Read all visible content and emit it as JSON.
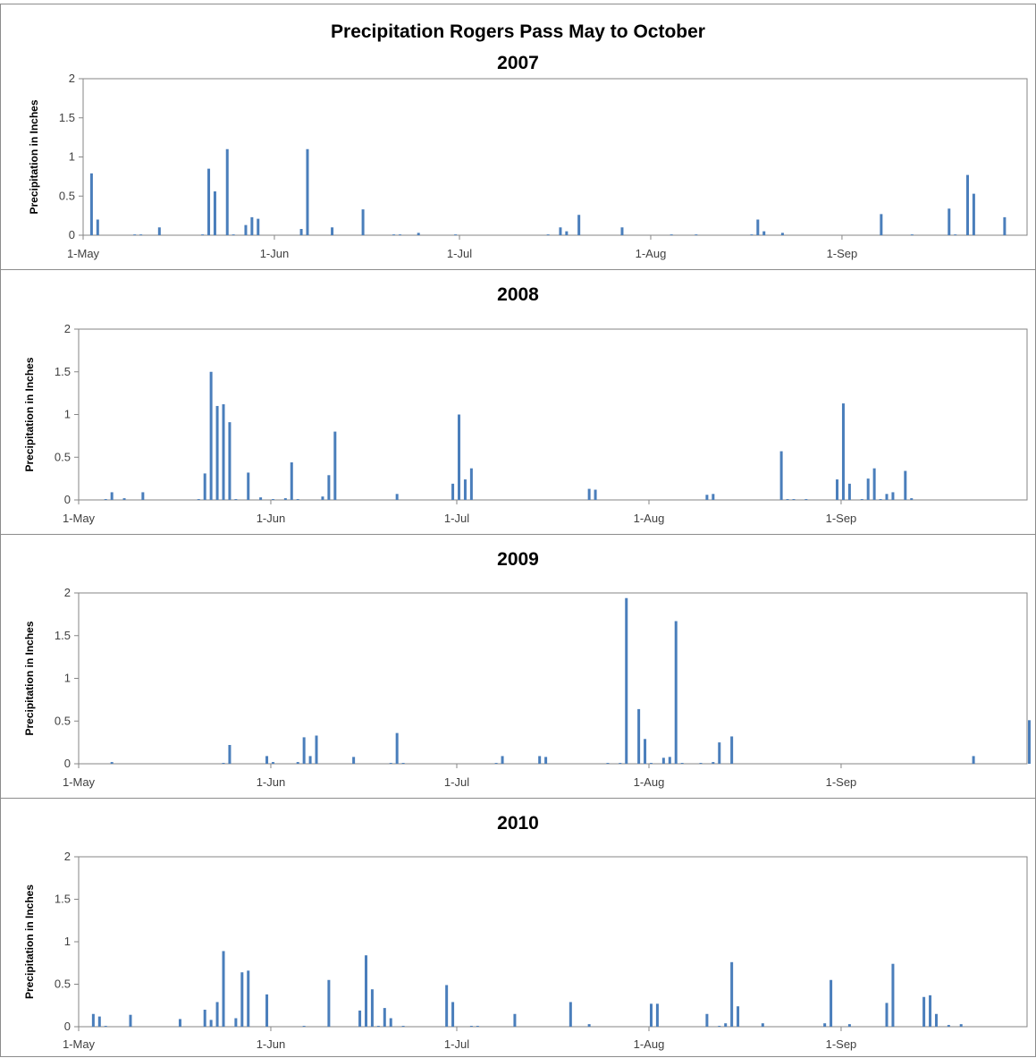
{
  "page_title": "Precipitation Rogers Pass May to October",
  "colors": {
    "bar": "#4a7ebb",
    "axis": "#868686",
    "border": "#8c8c8c"
  },
  "chart_data": [
    {
      "type": "bar",
      "title": "2007",
      "ylabel": "Precipitation in Inches",
      "xlabel": "",
      "ylim": [
        0,
        2
      ],
      "yticks": [
        "0",
        "0.5",
        "1",
        "1.5",
        "2"
      ],
      "xticks": [
        {
          "day": 1,
          "label": "1-May"
        },
        {
          "day": 32,
          "label": "1-Jun"
        },
        {
          "day": 62,
          "label": "1-Jul"
        },
        {
          "day": 93,
          "label": "1-Aug"
        },
        {
          "day": 124,
          "label": "1-Sep"
        }
      ],
      "x_unit": "day since 30-Apr",
      "x": [
        2,
        3,
        9,
        10,
        13,
        20,
        21,
        22,
        24,
        25,
        27,
        28,
        29,
        36,
        37,
        41,
        46,
        51,
        52,
        55,
        61,
        76,
        78,
        79,
        81,
        88,
        96,
        100,
        109,
        110,
        111,
        114,
        130,
        135,
        141,
        142,
        144,
        145,
        150
      ],
      "values": [
        0.79,
        0.2,
        0.01,
        0.01,
        0.1,
        0.01,
        0.85,
        0.56,
        1.1,
        0.01,
        0.13,
        0.23,
        0.21,
        0.08,
        1.1,
        0.1,
        0.33,
        0.01,
        0.01,
        0.03,
        0.01,
        0.01,
        0.1,
        0.05,
        0.26,
        0.1,
        0.01,
        0.01,
        0.01,
        0.2,
        0.05,
        0.03,
        0.27,
        0.01,
        0.34,
        0.01,
        0.77,
        0.53,
        0.23
      ]
    },
    {
      "type": "bar",
      "title": "2008",
      "ylabel": "Precipitation in Inches",
      "xlabel": "",
      "ylim": [
        0,
        2
      ],
      "yticks": [
        "0",
        "0.5",
        "1",
        "1.5",
        "2"
      ],
      "xticks": [
        {
          "day": 1,
          "label": "1-May"
        },
        {
          "day": 32,
          "label": "1-Jun"
        },
        {
          "day": 62,
          "label": "1-Jul"
        },
        {
          "day": 93,
          "label": "1-Aug"
        },
        {
          "day": 124,
          "label": "1-Sep"
        }
      ],
      "x_unit": "day since 30-Apr",
      "x": [
        5,
        6,
        8,
        11,
        20,
        21,
        22,
        23,
        24,
        25,
        26,
        28,
        30,
        32,
        34,
        35,
        36,
        40,
        41,
        42,
        52,
        61,
        62,
        63,
        64,
        83,
        84,
        102,
        103,
        114,
        115,
        116,
        118,
        123,
        124,
        125,
        127,
        128,
        129,
        130,
        131,
        132,
        134,
        135
      ],
      "values": [
        0.01,
        0.09,
        0.02,
        0.09,
        0.01,
        0.31,
        1.5,
        1.1,
        1.12,
        0.91,
        0.01,
        0.32,
        0.03,
        0.01,
        0.02,
        0.44,
        0.01,
        0.04,
        0.29,
        0.8,
        0.07,
        0.19,
        1.0,
        0.24,
        0.37,
        0.13,
        0.12,
        0.06,
        0.07,
        0.57,
        0.01,
        0.01,
        0.01,
        0.24,
        1.13,
        0.19,
        0.01,
        0.25,
        0.37,
        0.01,
        0.07,
        0.09,
        0.34,
        0.02
      ]
    },
    {
      "type": "bar",
      "title": "2009",
      "ylabel": "Precipitation in Inches",
      "xlabel": "",
      "ylim": [
        0,
        2
      ],
      "yticks": [
        "0",
        "0.5",
        "1",
        "1.5",
        "2"
      ],
      "xticks": [
        {
          "day": 1,
          "label": "1-May"
        },
        {
          "day": 32,
          "label": "1-Jun"
        },
        {
          "day": 62,
          "label": "1-Jul"
        },
        {
          "day": 93,
          "label": "1-Aug"
        },
        {
          "day": 124,
          "label": "1-Sep"
        }
      ],
      "x_unit": "day since 30-Apr",
      "x": [
        6,
        24,
        25,
        31,
        32,
        36,
        37,
        38,
        39,
        45,
        51,
        52,
        53,
        68,
        69,
        75,
        76,
        86,
        88,
        89,
        91,
        92,
        93,
        95,
        96,
        97,
        98,
        101,
        103,
        104,
        106,
        145,
        154
      ],
      "values": [
        0.02,
        0.01,
        0.22,
        0.09,
        0.02,
        0.02,
        0.31,
        0.09,
        0.33,
        0.08,
        0.01,
        0.36,
        0.01,
        0.01,
        0.09,
        0.09,
        0.08,
        0.01,
        0.01,
        1.94,
        0.64,
        0.29,
        0.01,
        0.07,
        0.08,
        1.67,
        0.01,
        0.01,
        0.02,
        0.25,
        0.32,
        0.09,
        0.51
      ]
    },
    {
      "type": "bar",
      "title": "2010",
      "ylabel": "Precipitation in Inches",
      "xlabel": "",
      "ylim": [
        0,
        2
      ],
      "yticks": [
        "0",
        "0.5",
        "1",
        "1.5",
        "2"
      ],
      "xticks": [
        {
          "day": 1,
          "label": "1-May"
        },
        {
          "day": 32,
          "label": "1-Jun"
        },
        {
          "day": 62,
          "label": "1-Jul"
        },
        {
          "day": 93,
          "label": "1-Aug"
        },
        {
          "day": 124,
          "label": "1-Sep"
        }
      ],
      "x_unit": "day since 30-Apr",
      "x": [
        3,
        4,
        5,
        9,
        17,
        21,
        22,
        23,
        24,
        26,
        27,
        28,
        31,
        37,
        41,
        46,
        47,
        48,
        49,
        50,
        51,
        53,
        60,
        61,
        64,
        65,
        71,
        80,
        83,
        93,
        94,
        102,
        104,
        105,
        106,
        107,
        111,
        121,
        122,
        125,
        131,
        132,
        137,
        138,
        139,
        141,
        143
      ],
      "values": [
        0.15,
        0.12,
        0.01,
        0.14,
        0.09,
        0.2,
        0.08,
        0.29,
        0.89,
        0.1,
        0.64,
        0.66,
        0.38,
        0.01,
        0.55,
        0.19,
        0.84,
        0.44,
        0.01,
        0.22,
        0.1,
        0.01,
        0.49,
        0.29,
        0.01,
        0.01,
        0.15,
        0.29,
        0.03,
        0.27,
        0.27,
        0.15,
        0.01,
        0.04,
        0.76,
        0.24,
        0.04,
        0.04,
        0.55,
        0.03,
        0.28,
        0.74,
        0.35,
        0.37,
        0.15,
        0.02,
        0.03
      ]
    }
  ]
}
